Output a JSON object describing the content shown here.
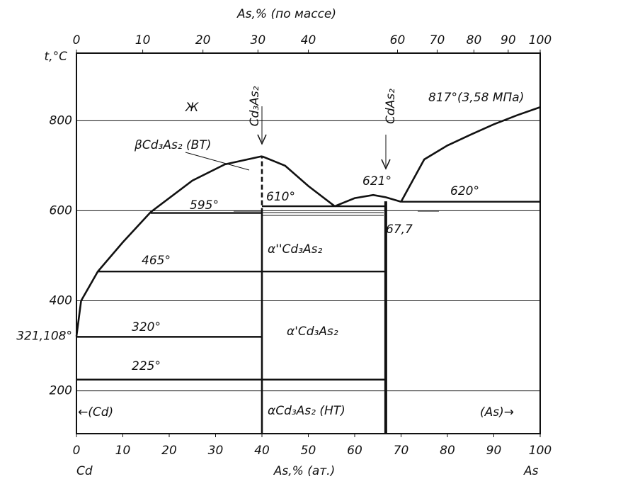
{
  "chart_data": {
    "type": "phase_diagram",
    "ylabel": "t,°C",
    "xlabel": "As,% (ат.)",
    "x2label": "As,% (по массе)",
    "endpoints": [
      "Cd",
      "As"
    ],
    "xlim": [
      0,
      100
    ],
    "ylim": [
      105,
      950
    ],
    "xticks": [
      0,
      10,
      20,
      30,
      40,
      50,
      60,
      70,
      80,
      90,
      100
    ],
    "x2ticks": [
      0,
      10,
      20,
      30,
      40,
      60,
      70,
      80,
      90,
      100
    ],
    "yticks": [
      200,
      {
        "value": 321.108,
        "label": "321,108°"
      },
      400,
      600,
      800
    ],
    "grid": true,
    "color": "#111111",
    "curves": [
      {
        "x": [
          0,
          1,
          4.6,
          10,
          16,
          25,
          32,
          40
        ],
        "values": [
          321.108,
          400,
          465,
          530,
          597,
          667,
          703,
          721
        ]
      },
      {
        "x": [
          40,
          45,
          50,
          55.7
        ],
        "values": [
          721,
          700,
          655,
          610
        ]
      },
      {
        "x": [
          55.7,
          60,
          64,
          66.7,
          70
        ],
        "values": [
          610,
          628,
          635,
          630,
          620
        ]
      },
      {
        "x": [
          70,
          75,
          80,
          85,
          90,
          95,
          100
        ],
        "values": [
          620,
          714,
          745,
          769,
          792,
          812,
          830
        ]
      }
    ],
    "isotherms": [
      {
        "label": "595°",
        "value": 595,
        "x": [
          16,
          40
        ]
      },
      {
        "label": "610°",
        "value": 610,
        "x": [
          40,
          66.7
        ]
      },
      {
        "label": "620°",
        "value": 620,
        "x": [
          70,
          100
        ]
      },
      {
        "label": "465°",
        "value": 465,
        "x": [
          4.6,
          66.7
        ]
      },
      {
        "label": "320°",
        "value": 320,
        "x": [
          0,
          40
        ]
      },
      {
        "label": "225°",
        "value": 225,
        "x": [
          0,
          66.7
        ]
      }
    ],
    "compounds": [
      {
        "label": "Cd₃As₂",
        "x": 40,
        "solid_top": 595,
        "dashed_top": 721
      },
      {
        "label": "CdAs₂",
        "x": 66.7,
        "solid_top": 621
      }
    ],
    "annotations": [
      "Ж",
      "βCd₃As₂ (ВТ)",
      "α''Cd₃As₂",
      "α'Cd₃As₂",
      "αCd₃As₂ (НТ)",
      "←(Cd)",
      "(As)→",
      "817°(3,58 МПа)",
      "621°",
      "67,7"
    ]
  }
}
